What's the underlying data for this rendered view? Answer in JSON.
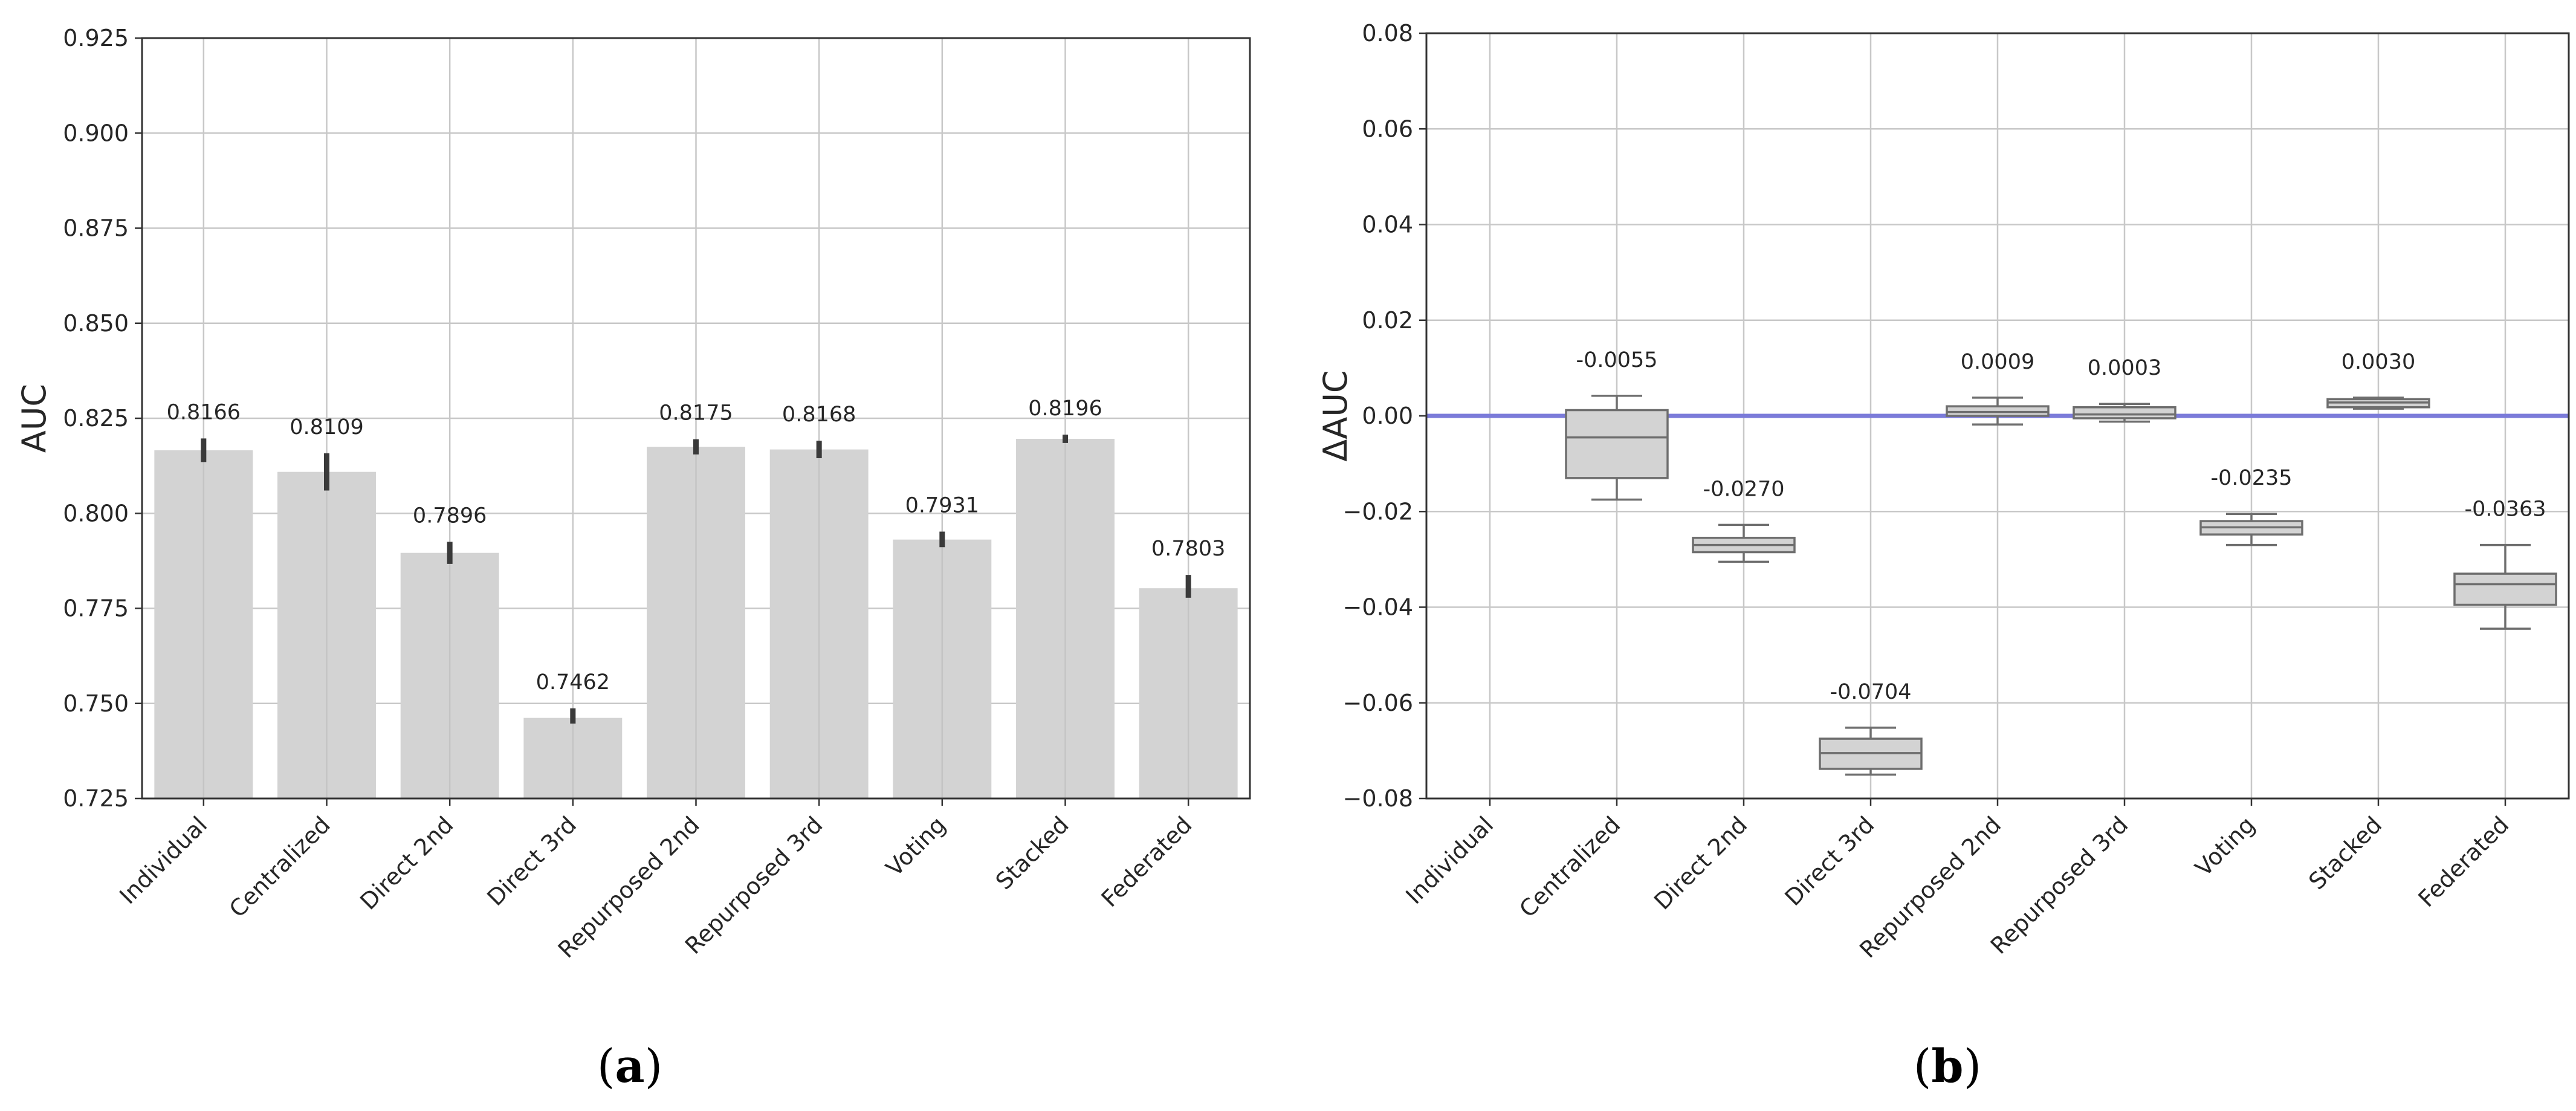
{
  "chart_data": [
    {
      "type": "bar",
      "panel": "(a)",
      "panel_letter": "a",
      "ylabel": "AUC",
      "ylim": [
        0.725,
        0.925
      ],
      "yticks": [
        "0.725",
        "0.750",
        "0.775",
        "0.800",
        "0.825",
        "0.850",
        "0.875",
        "0.900",
        "0.925"
      ],
      "grid": true,
      "categories": [
        "Individual",
        "Centralized",
        "Direct 2nd",
        "Direct 3rd",
        "Repurposed 2nd",
        "Repurposed 3rd",
        "Voting",
        "Stacked",
        "Federated"
      ],
      "values": [
        0.8166,
        0.8109,
        0.7896,
        0.7462,
        0.8175,
        0.8168,
        0.7931,
        0.8196,
        0.7803
      ],
      "value_labels": [
        "0.8166",
        "0.8109",
        "0.7896",
        "0.7462",
        "0.8175",
        "0.8168",
        "0.7931",
        "0.8196",
        "0.7803"
      ],
      "error_low": [
        0.8135,
        0.806,
        0.7867,
        0.7447,
        0.8155,
        0.8145,
        0.7911,
        0.8185,
        0.7778
      ],
      "error_high": [
        0.8197,
        0.8158,
        0.7925,
        0.7487,
        0.8195,
        0.8191,
        0.7952,
        0.8207,
        0.7838
      ],
      "bar_color": "#d3d3d3",
      "error_color": "#3a3a3a"
    },
    {
      "type": "box",
      "panel": "(b)",
      "panel_letter": "b",
      "ylabel": "ΔAUC",
      "ylim": [
        -0.08,
        0.08
      ],
      "yticks": [
        "−0.08",
        "−0.06",
        "−0.04",
        "−0.02",
        "0.00",
        "0.02",
        "0.04",
        "0.06",
        "0.08"
      ],
      "grid": true,
      "reference_line": {
        "y": 0.0,
        "color": "#7b7bd9"
      },
      "categories": [
        "Individual",
        "Centralized",
        "Direct 2nd",
        "Direct 3rd",
        "Repurposed 2nd",
        "Repurposed 3rd",
        "Voting",
        "Stacked",
        "Federated"
      ],
      "boxes": [
        null,
        {
          "whisker_low": -0.0175,
          "q1": -0.013,
          "median": -0.0045,
          "q3": 0.0012,
          "whisker_high": 0.0042,
          "label": "-0.0055"
        },
        {
          "whisker_low": -0.0305,
          "q1": -0.0285,
          "median": -0.027,
          "q3": -0.0255,
          "whisker_high": -0.0228,
          "label": "-0.0270"
        },
        {
          "whisker_low": -0.075,
          "q1": -0.0738,
          "median": -0.0705,
          "q3": -0.0675,
          "whisker_high": -0.0652,
          "label": "-0.0704"
        },
        {
          "whisker_low": -0.0018,
          "q1": 0.0,
          "median": 0.0008,
          "q3": 0.002,
          "whisker_high": 0.0038,
          "label": "0.0009"
        },
        {
          "whisker_low": -0.0012,
          "q1": -0.0005,
          "median": 0.0003,
          "q3": 0.0018,
          "whisker_high": 0.0025,
          "label": "0.0003"
        },
        {
          "whisker_low": -0.027,
          "q1": -0.0248,
          "median": -0.0233,
          "q3": -0.022,
          "whisker_high": -0.0205,
          "label": "-0.0235"
        },
        {
          "whisker_low": 0.0015,
          "q1": 0.0018,
          "median": 0.0028,
          "q3": 0.0035,
          "whisker_high": 0.0038,
          "label": "0.0030"
        },
        {
          "whisker_low": -0.0445,
          "q1": -0.0395,
          "median": -0.0352,
          "q3": -0.033,
          "whisker_high": -0.027,
          "label": "-0.0363"
        }
      ],
      "box_color": "#d3d3d3",
      "line_color": "#6e6e6e"
    }
  ]
}
